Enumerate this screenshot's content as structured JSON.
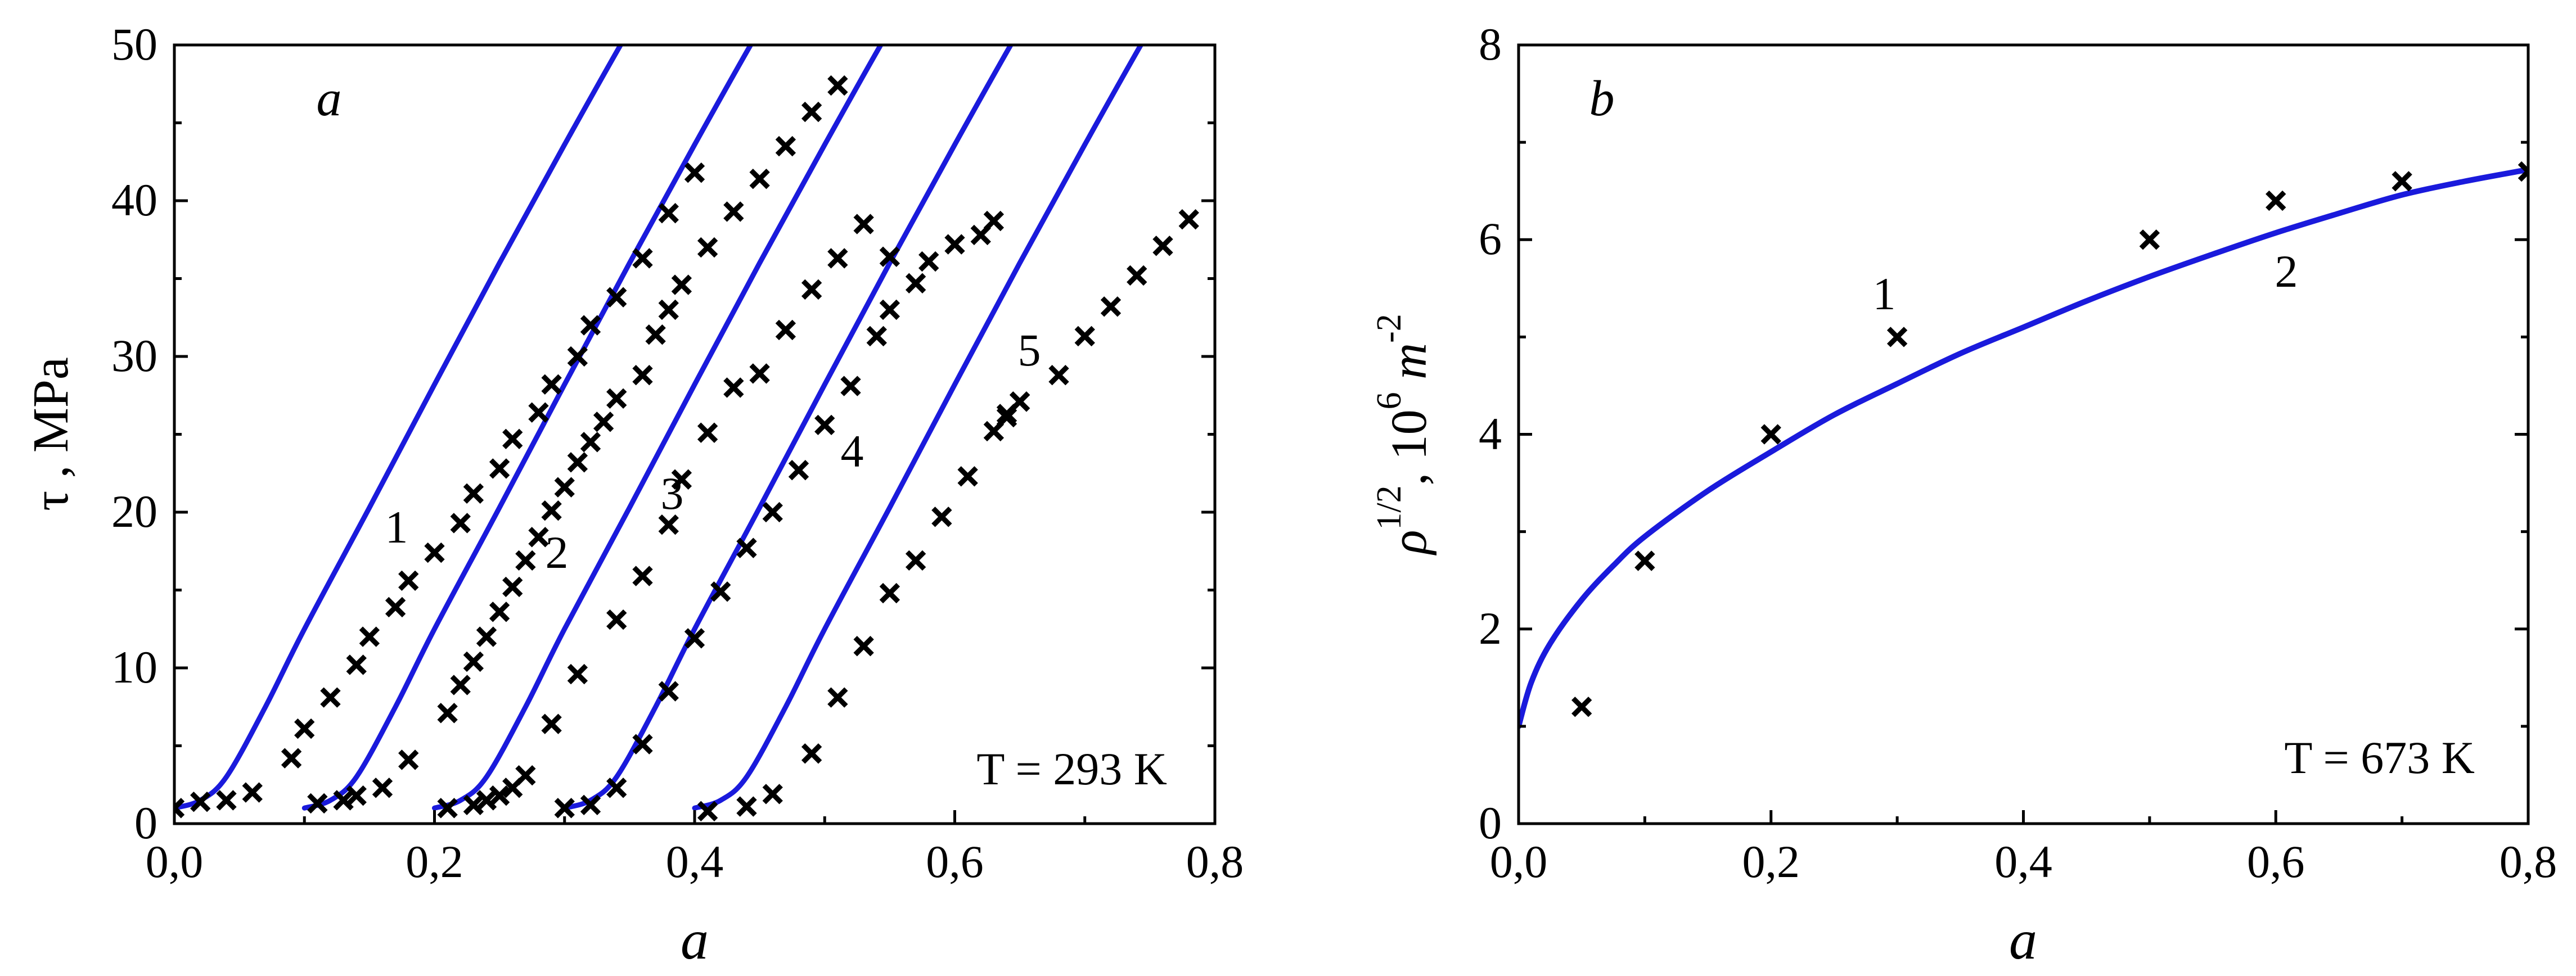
{
  "chart_data": [
    {
      "type": "scatter",
      "panel_letter": "a",
      "annotation": "T = 293 K",
      "xlabel": "a",
      "ylabel": "τ , MPa",
      "xlim": [
        0,
        0.8
      ],
      "ylim": [
        0,
        50
      ],
      "xticks": [
        0,
        0.2,
        0.4,
        0.6,
        0.8
      ],
      "yticks": [
        0,
        10,
        20,
        30,
        40,
        50
      ],
      "xtick_labels": [
        "0,0",
        "0,2",
        "0,4",
        "0,6",
        "0,8"
      ],
      "ytick_labels": [
        "0",
        "10",
        "20",
        "30",
        "40",
        "50"
      ],
      "grid": false,
      "curve_color": "#1a1adc",
      "marker_color": "#000000",
      "curves": [
        {
          "label": "1",
          "x": [
            0.0,
            0.02,
            0.04,
            0.07,
            0.1,
            0.15,
            0.2,
            0.25,
            0.3,
            0.35,
            0.38
          ],
          "y": [
            1.0,
            1.5,
            3.0,
            7.5,
            12.5,
            20.3,
            28.2,
            36.0,
            43.6,
            51.0,
            55.0
          ]
        },
        {
          "label": "2",
          "x": [
            0.1,
            0.12,
            0.14,
            0.17,
            0.2,
            0.25,
            0.3,
            0.35,
            0.4,
            0.45,
            0.48
          ],
          "y": [
            1.0,
            1.5,
            3.0,
            7.5,
            12.5,
            20.3,
            28.2,
            36.0,
            43.6,
            51.0,
            55.0
          ]
        },
        {
          "label": "3",
          "x": [
            0.2,
            0.22,
            0.24,
            0.27,
            0.3,
            0.35,
            0.4,
            0.45,
            0.5,
            0.55,
            0.58
          ],
          "y": [
            1.0,
            1.5,
            3.0,
            7.5,
            12.5,
            20.3,
            28.2,
            36.0,
            43.6,
            51.0,
            55.0
          ]
        },
        {
          "label": "4",
          "x": [
            0.3,
            0.32,
            0.34,
            0.37,
            0.4,
            0.45,
            0.5,
            0.55,
            0.6,
            0.65,
            0.68
          ],
          "y": [
            1.0,
            1.5,
            3.0,
            7.5,
            12.5,
            20.3,
            28.2,
            36.0,
            43.6,
            51.0,
            55.0
          ]
        },
        {
          "label": "5",
          "x": [
            0.4,
            0.42,
            0.44,
            0.47,
            0.5,
            0.55,
            0.6,
            0.65,
            0.7,
            0.75,
            0.78
          ],
          "y": [
            1.0,
            1.5,
            3.0,
            7.5,
            12.5,
            20.3,
            28.2,
            36.0,
            43.6,
            51.0,
            55.0
          ]
        }
      ],
      "series": [
        {
          "x": [
            0.0,
            0.02,
            0.04,
            0.06,
            0.09,
            0.1,
            0.12,
            0.14,
            0.15,
            0.17,
            0.18,
            0.2,
            0.22,
            0.23,
            0.25,
            0.26,
            0.28,
            0.29,
            0.31,
            0.32,
            0.34,
            0.36,
            0.38,
            0.4,
            0.41,
            0.43,
            0.45,
            0.47,
            0.49,
            0.51
          ],
          "y": [
            1.0,
            1.4,
            1.5,
            2.0,
            4.2,
            6.1,
            8.1,
            10.2,
            12.0,
            13.9,
            15.6,
            17.4,
            19.3,
            21.2,
            22.8,
            24.7,
            26.4,
            28.2,
            30.0,
            32.0,
            33.8,
            36.3,
            39.2,
            41.8,
            37.0,
            39.3,
            41.4,
            43.5,
            45.7,
            47.4
          ]
        },
        {
          "x": [
            0.11,
            0.13,
            0.14,
            0.16,
            0.18,
            0.21,
            0.22,
            0.23,
            0.24,
            0.25,
            0.26,
            0.27,
            0.28,
            0.29,
            0.3,
            0.31,
            0.32,
            0.33,
            0.34,
            0.36,
            0.37,
            0.38,
            0.39
          ],
          "y": [
            1.3,
            1.5,
            1.8,
            2.3,
            4.1,
            7.1,
            8.9,
            10.4,
            12.0,
            13.6,
            15.2,
            16.9,
            18.4,
            20.1,
            21.6,
            23.2,
            24.5,
            25.8,
            27.3,
            28.8,
            31.4,
            33.0,
            34.6
          ]
        },
        {
          "x": [
            0.21,
            0.23,
            0.24,
            0.25,
            0.26,
            0.27,
            0.29,
            0.31,
            0.34,
            0.36,
            0.38,
            0.39,
            0.41,
            0.43,
            0.45,
            0.47,
            0.49,
            0.51,
            0.53,
            0.55
          ],
          "y": [
            1.0,
            1.2,
            1.5,
            1.8,
            2.3,
            3.1,
            6.4,
            9.6,
            13.1,
            15.9,
            19.2,
            22.1,
            25.1,
            28.0,
            28.9,
            31.7,
            34.3,
            36.3,
            38.5,
            36.4
          ]
        },
        {
          "x": [
            0.3,
            0.32,
            0.34,
            0.36,
            0.38,
            0.4,
            0.42,
            0.44,
            0.46,
            0.48,
            0.5,
            0.52,
            0.54,
            0.55,
            0.57,
            0.58,
            0.6,
            0.62,
            0.63,
            0.64,
            0.65
          ],
          "y": [
            1.0,
            1.2,
            2.3,
            5.1,
            8.5,
            11.9,
            14.9,
            17.7,
            20.0,
            22.7,
            25.6,
            28.1,
            31.3,
            33.0,
            34.7,
            36.1,
            37.2,
            37.8,
            38.7,
            26.3,
            27.1
          ]
        },
        {
          "x": [
            0.41,
            0.44,
            0.46,
            0.49,
            0.51,
            0.53,
            0.55,
            0.57,
            0.59,
            0.61,
            0.63,
            0.64,
            0.65,
            0.68,
            0.7,
            0.72,
            0.74,
            0.76,
            0.78
          ],
          "y": [
            0.8,
            1.1,
            1.9,
            4.5,
            8.1,
            11.4,
            14.8,
            16.9,
            19.7,
            22.3,
            25.2,
            26.1,
            27.1,
            28.8,
            31.3,
            33.2,
            35.2,
            37.1,
            38.8
          ]
        }
      ]
    },
    {
      "type": "scatter",
      "panel_letter": "b",
      "annotation": "T = 673 K",
      "xlabel": "a",
      "ylabel": {
        "base": "ρ",
        "sup1": "1/2",
        "mid": ", 10",
        "sup2": "6",
        "unit": " m",
        "sup3": "-2"
      },
      "xlim": [
        0,
        0.8
      ],
      "ylim": [
        0,
        8
      ],
      "xticks": [
        0,
        0.2,
        0.4,
        0.6,
        0.8
      ],
      "yticks": [
        0,
        2,
        4,
        6,
        8
      ],
      "xtick_labels": [
        "0,0",
        "0,2",
        "0,4",
        "0,6",
        "0,8"
      ],
      "ytick_labels": [
        "0",
        "2",
        "4",
        "6",
        "8"
      ],
      "grid": false,
      "curve_color": "#1a1adc",
      "marker_color": "#000000",
      "curve": {
        "x": [
          0,
          0.01,
          0.025,
          0.05,
          0.075,
          0.1,
          0.15,
          0.2,
          0.25,
          0.3,
          0.35,
          0.4,
          0.45,
          0.5,
          0.55,
          0.6,
          0.65,
          0.7,
          0.75,
          0.8
        ],
        "y": [
          1.0,
          1.45,
          1.85,
          2.3,
          2.65,
          2.95,
          3.42,
          3.82,
          4.2,
          4.52,
          4.83,
          5.1,
          5.37,
          5.62,
          5.85,
          6.07,
          6.27,
          6.46,
          6.6,
          6.72
        ]
      },
      "series": [
        {
          "name": "1",
          "x": [
            0.05,
            0.1,
            0.2,
            0.3
          ],
          "y": [
            1.2,
            2.7,
            4.0,
            5.0
          ]
        },
        {
          "name": "2",
          "x": [
            0.5,
            0.6,
            0.7,
            0.8
          ],
          "y": [
            6.0,
            6.4,
            6.6,
            6.7
          ]
        }
      ],
      "point_labels": [
        {
          "text": "1",
          "x": 0.29,
          "y": 5.25
        },
        {
          "text": "2",
          "x": 0.61,
          "y": 5.55
        }
      ]
    }
  ]
}
